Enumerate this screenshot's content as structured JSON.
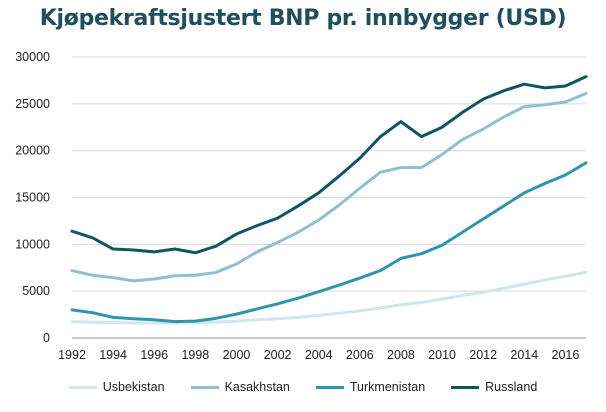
{
  "chart_data": {
    "type": "line",
    "title": "Kjøpekraftsjustert BNP pr. innbygger (USD)",
    "xlabel": "",
    "ylabel": "",
    "ylim": [
      0,
      30000
    ],
    "yticks": [
      0,
      5000,
      10000,
      15000,
      20000,
      25000,
      30000
    ],
    "xticks": [
      1992,
      1994,
      1996,
      1998,
      2000,
      2002,
      2004,
      2006,
      2008,
      2010,
      2012,
      2014,
      2016
    ],
    "grid": true,
    "legend_position": "bottom",
    "x": [
      1992,
      1993,
      1994,
      1995,
      1996,
      1997,
      1998,
      1999,
      2000,
      2001,
      2002,
      2003,
      2004,
      2005,
      2006,
      2007,
      2008,
      2009,
      2010,
      2011,
      2012,
      2013,
      2014,
      2015,
      2016,
      2017
    ],
    "series": [
      {
        "name": "Usbekistan",
        "color": "#cfe6ee",
        "values": [
          1750,
          1700,
          1650,
          1600,
          1600,
          1620,
          1650,
          1700,
          1800,
          1950,
          2050,
          2200,
          2400,
          2650,
          2900,
          3200,
          3550,
          3800,
          4150,
          4550,
          4900,
          5300,
          5750,
          6200,
          6600,
          7000
        ]
      },
      {
        "name": "Kasakhstan",
        "color": "#92bfcf",
        "values": [
          7200,
          6700,
          6450,
          6100,
          6300,
          6650,
          6700,
          7000,
          7900,
          9200,
          10200,
          11300,
          12600,
          14200,
          16000,
          17700,
          18200,
          18200,
          19600,
          21200,
          22300,
          23600,
          24700,
          24900,
          25200,
          26100
        ]
      },
      {
        "name": "Turkmenistan",
        "color": "#2f95ad",
        "values": [
          3000,
          2700,
          2200,
          2050,
          1950,
          1750,
          1800,
          2100,
          2550,
          3100,
          3650,
          4250,
          4950,
          5650,
          6400,
          7200,
          8500,
          9000,
          9900,
          11300,
          12700,
          14100,
          15500,
          16500,
          17400,
          18700
        ]
      },
      {
        "name": "Russland",
        "color": "#0f5663",
        "values": [
          11400,
          10700,
          9500,
          9400,
          9200,
          9500,
          9100,
          9800,
          11100,
          12000,
          12800,
          14100,
          15500,
          17300,
          19200,
          21500,
          23100,
          21500,
          22500,
          24100,
          25500,
          26400,
          27100,
          26700,
          26900,
          27900
        ]
      }
    ]
  }
}
